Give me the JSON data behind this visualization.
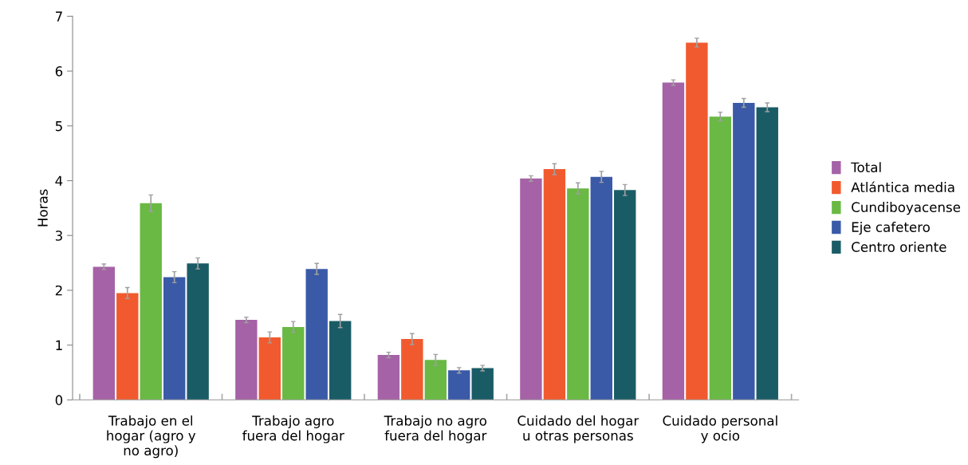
{
  "chart_data": {
    "type": "bar",
    "ylabel": "Horas",
    "categories": [
      "Trabajo en el\nhogar (agro y\nno agro)",
      "Trabajo agro\nfuera del hogar",
      "Trabajo no agro\nfuera del hogar",
      "Cuidado del hogar\nu otras personas",
      "Cuidado personal\ny ocio"
    ],
    "series": [
      {
        "name": "Total",
        "color": "#a562a6",
        "values": [
          2.43,
          1.46,
          0.82,
          4.04,
          5.79
        ],
        "errors": [
          0.05,
          0.05,
          0.05,
          0.05,
          0.05
        ]
      },
      {
        "name": "Atlántica media",
        "color": "#f15a2e",
        "values": [
          1.95,
          1.14,
          1.11,
          4.21,
          6.52
        ],
        "errors": [
          0.1,
          0.1,
          0.1,
          0.1,
          0.08
        ]
      },
      {
        "name": "Cundiboyacense",
        "color": "#69b944",
        "values": [
          3.59,
          1.33,
          0.73,
          3.86,
          5.17
        ],
        "errors": [
          0.15,
          0.1,
          0.1,
          0.1,
          0.08
        ]
      },
      {
        "name": "Eje cafetero",
        "color": "#3a5aa8",
        "values": [
          2.24,
          2.39,
          0.54,
          4.07,
          5.42
        ],
        "errors": [
          0.1,
          0.1,
          0.05,
          0.1,
          0.08
        ]
      },
      {
        "name": "Centro oriente",
        "color": "#1a5c66",
        "values": [
          2.49,
          1.44,
          0.58,
          3.83,
          5.34
        ],
        "errors": [
          0.1,
          0.12,
          0.05,
          0.1,
          0.08
        ]
      }
    ],
    "ylim": [
      0,
      7
    ],
    "yticks": [
      0,
      1,
      2,
      3,
      4,
      5,
      6,
      7
    ],
    "grid": false,
    "legend": "right"
  }
}
